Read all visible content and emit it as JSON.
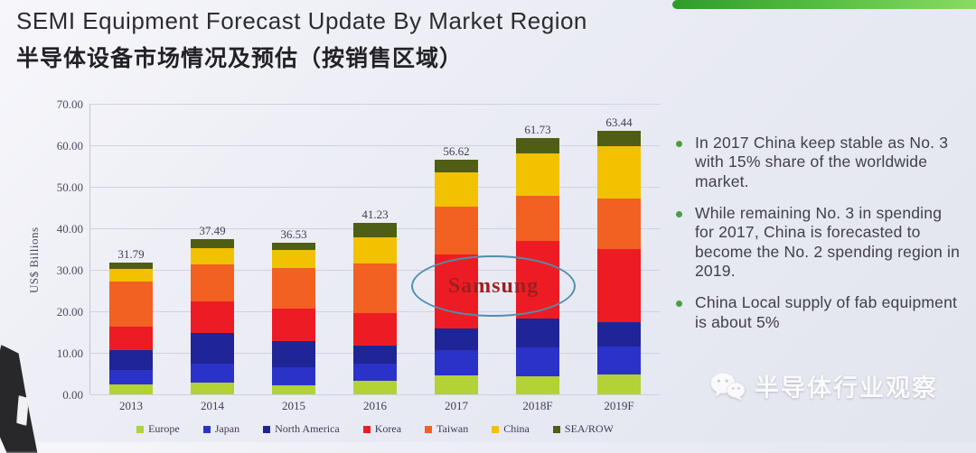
{
  "header": {
    "title_en": "SEMI Equipment Forecast Update By Market Region",
    "title_zh": "半导体设备市场情况及预估（按销售区域）",
    "accent_color": "#3fae34"
  },
  "chart_data": {
    "type": "bar",
    "stacked": true,
    "title": "",
    "xlabel": "",
    "ylabel": "US$ Billions",
    "ylim": [
      0,
      70
    ],
    "ytick_step": 10,
    "ytick_labels": [
      "0.00",
      "10.00",
      "20.00",
      "30.00",
      "40.00",
      "50.00",
      "60.00",
      "70.00"
    ],
    "grid": true,
    "legend_position": "bottom",
    "categories": [
      "2013",
      "2014",
      "2015",
      "2016",
      "2017",
      "2018F",
      "2019F"
    ],
    "totals": [
      31.79,
      37.49,
      36.53,
      41.23,
      56.62,
      61.73,
      63.44
    ],
    "series": [
      {
        "name": "Europe",
        "color": "#b2d235",
        "values": [
          2.3,
          2.8,
          2.1,
          3.3,
          4.6,
          4.4,
          4.8
        ]
      },
      {
        "name": "Japan",
        "color": "#2b32c8",
        "values": [
          3.5,
          4.6,
          4.4,
          4.2,
          6.05,
          7.0,
          6.7
        ]
      },
      {
        "name": "North America",
        "color": "#1f2596",
        "values": [
          4.9,
          7.45,
          6.25,
          4.2,
          5.25,
          6.8,
          6.0
        ]
      },
      {
        "name": "Korea",
        "color": "#ed1c24",
        "values": [
          5.7,
          7.55,
          7.85,
          7.9,
          17.9,
          18.8,
          17.5
        ]
      },
      {
        "name": "Taiwan",
        "color": "#f26122",
        "values": [
          10.7,
          8.9,
          9.9,
          12.0,
          11.4,
          10.8,
          12.2
        ]
      },
      {
        "name": "China",
        "color": "#f2c100",
        "values": [
          3.2,
          3.9,
          4.35,
          6.2,
          8.3,
          10.2,
          12.7
        ]
      },
      {
        "name": "SEA/ROW",
        "color": "#4f5e14",
        "values": [
          1.49,
          2.29,
          1.68,
          3.43,
          3.12,
          3.73,
          3.54
        ]
      }
    ],
    "annotation": {
      "text": "Samsung",
      "text_color": "#9e1f1f",
      "ellipse_color": "#4e8fae"
    }
  },
  "notes": {
    "bullet_color": "#4a9f3f",
    "bullets": [
      "In 2017 China keep stable as No. 3 with 15% share of the worldwide market.",
      "While remaining No. 3 in spending for 2017, China is forecasted to become the No. 2 spending region in 2019.",
      "China Local supply of fab equipment is about 5%"
    ]
  },
  "watermark": {
    "icon": "wechat-icon",
    "text": "半导体行业观察"
  }
}
